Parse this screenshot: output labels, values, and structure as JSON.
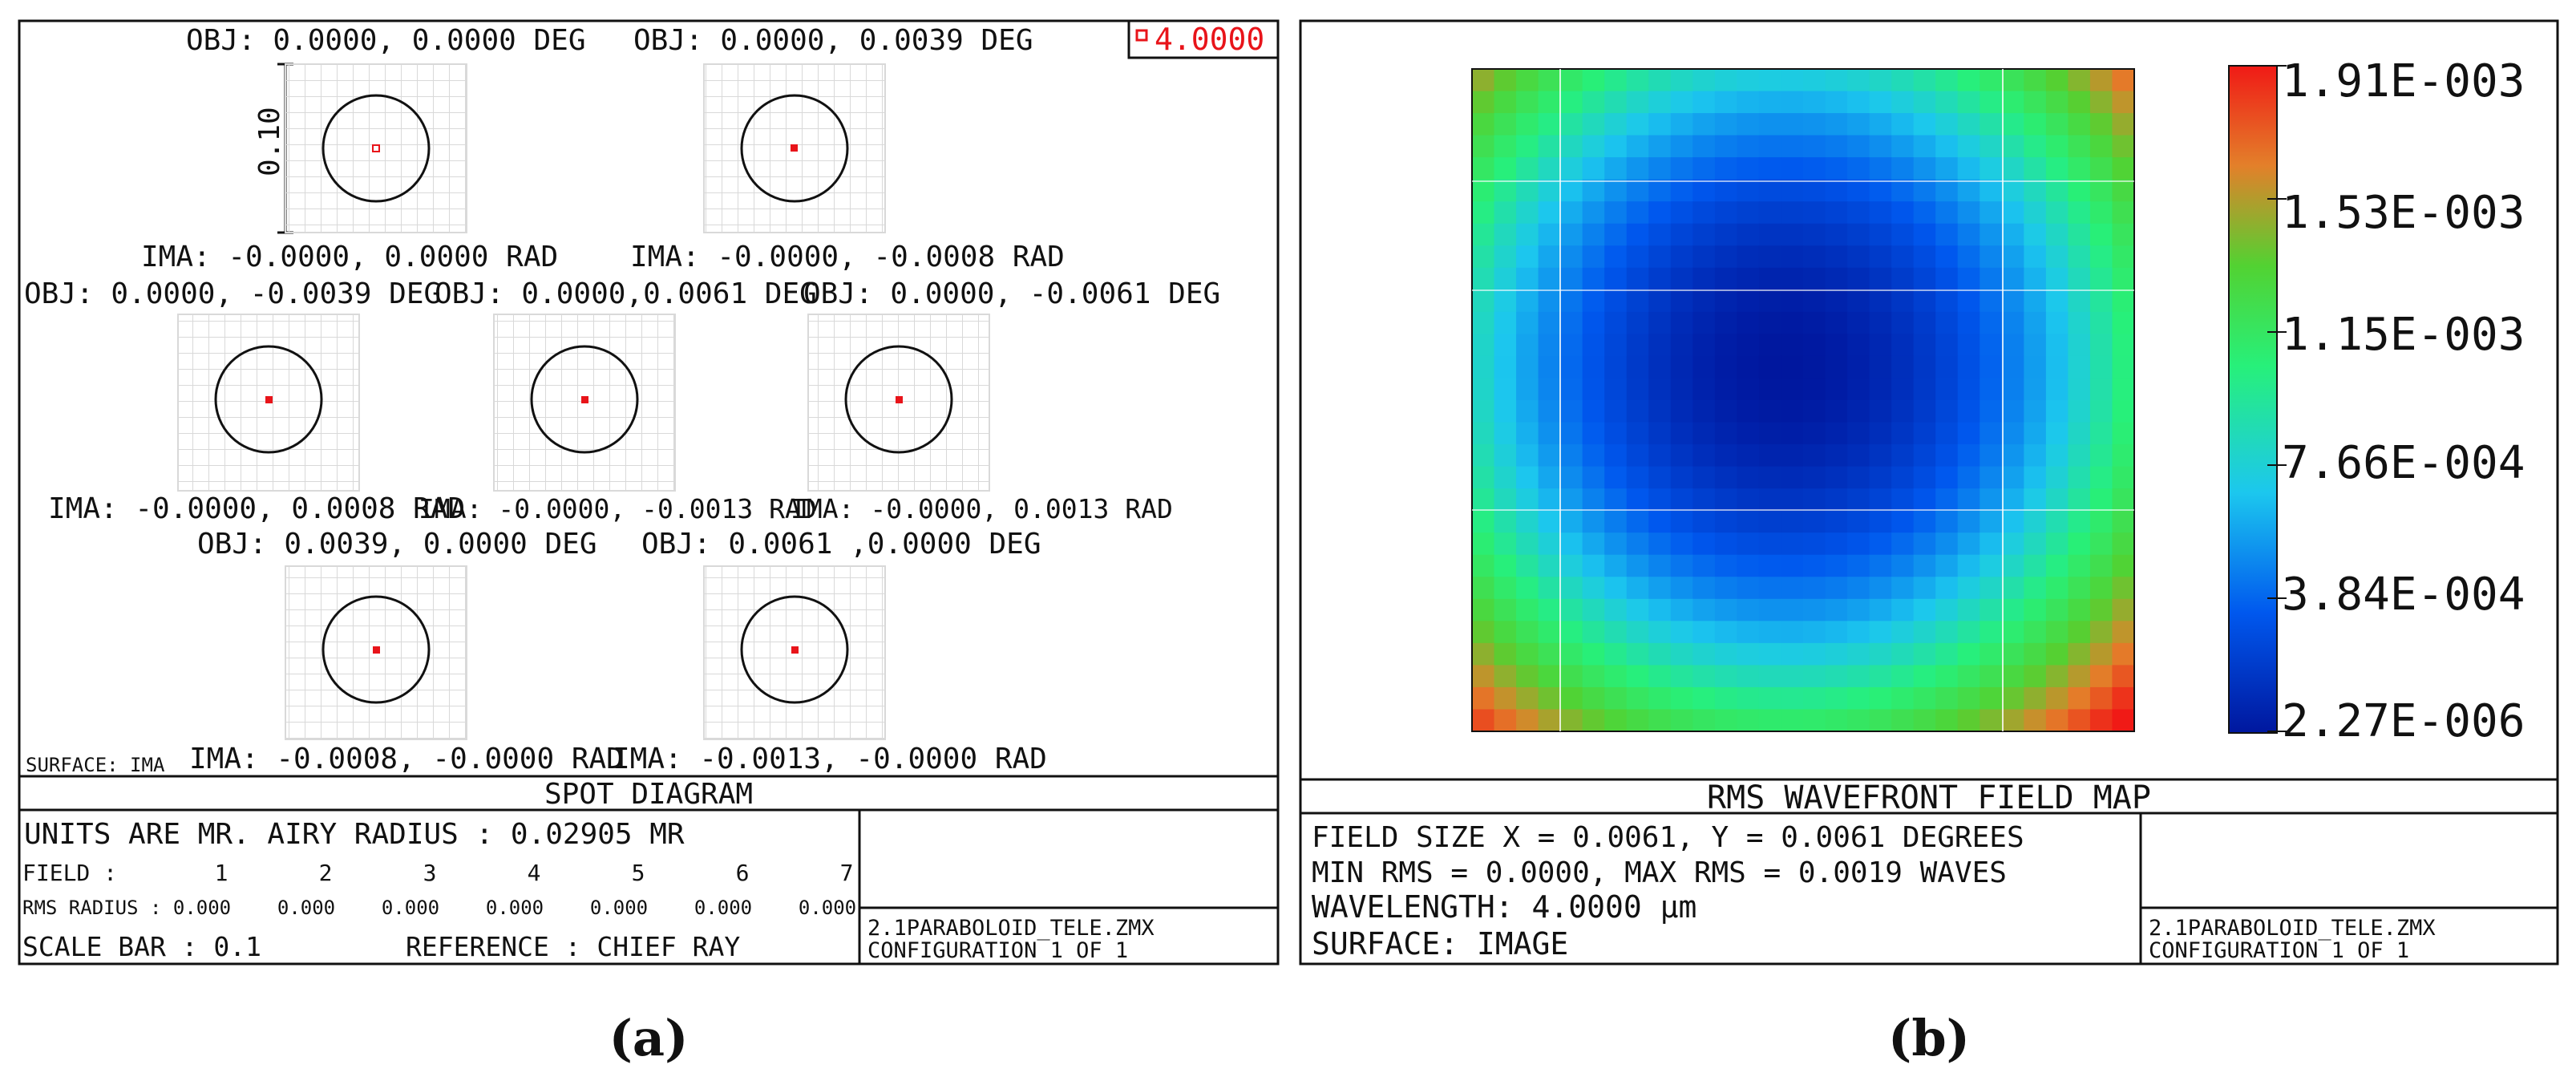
{
  "panel_a": {
    "wavelength_badge": "4.0000",
    "scale_bar_label": "0.10",
    "spots": [
      {
        "obj": "OBJ: 0.0000, 0.0000 DEG",
        "ima": "IMA: -0.0000, 0.0000 RAD"
      },
      {
        "obj": "OBJ: 0.0000, 0.0039 DEG",
        "ima": "IMA: -0.0000, -0.0008 RAD"
      },
      {
        "obj": "OBJ: 0.0000, -0.0039 DEG",
        "ima": "IMA: -0.0000, 0.0008 RAD"
      },
      {
        "obj": "OBJ: 0.0000,0.0061 DEG",
        "ima": "IMA: -0.0000, -0.0013 RAD"
      },
      {
        "obj": "OBJ: 0.0000, -0.0061 DEG",
        "ima": "IMA: -0.0000, 0.0013 RAD"
      },
      {
        "obj": "OBJ: 0.0039, 0.0000 DEG",
        "ima": "IMA: -0.0008, -0.0000 RAD"
      },
      {
        "obj": "OBJ: 0.0061 ,0.0000 DEG",
        "ima": "IMA: -0.0013, -0.0000 RAD"
      }
    ],
    "surface_label": "SURFACE: IMA",
    "title": "SPOT DIAGRAM",
    "units_line": "UNITS ARE MR.   AIRY RADIUS : 0.02905 MR",
    "field_label": "FIELD      :",
    "field_values": [
      "1",
      "2",
      "3",
      "4",
      "5",
      "6",
      "7"
    ],
    "rms_label": "RMS RADIUS :",
    "rms_values": [
      "0.000",
      "0.000",
      "0.000",
      "0.000",
      "0.000",
      "0.000",
      "0.000"
    ],
    "scale_bar_line": "SCALE BAR   : 0.1",
    "reference_line": "REFERENCE    : CHIEF RAY",
    "file_name": "2.1PARABOLOID_TELE.ZMX",
    "configuration": "CONFIGURATION 1 OF 1",
    "colors": {
      "spot": "#e8141a",
      "badge": "#e8141a",
      "grid": "#d9d9d9"
    }
  },
  "panel_b": {
    "title": "RMS WAVEFRONT FIELD MAP",
    "colorbar_labels": [
      "1.91E-003",
      "1.53E-003",
      "1.15E-003",
      "7.66E-004",
      "3.84E-004",
      "2.27E-006"
    ],
    "info_lines": [
      "FIELD SIZE X = 0.0061, Y = 0.0061 DEGREES",
      "MIN RMS = 0.0000, MAX RMS = 0.0019 WAVES",
      "WAVELENGTH: 4.0000 µm",
      "SURFACE: IMAGE"
    ],
    "file_name": "2.1PARABOLOID_TELE.ZMX",
    "configuration": "CONFIGURATION 1 OF 1",
    "colormap": [
      "#00179e",
      "#0058ee",
      "#1cc7ee",
      "#27f07a",
      "#52d232",
      "#e3802a",
      "#f01a16"
    ]
  },
  "captions": {
    "a": "(a)",
    "b": "(b)"
  }
}
